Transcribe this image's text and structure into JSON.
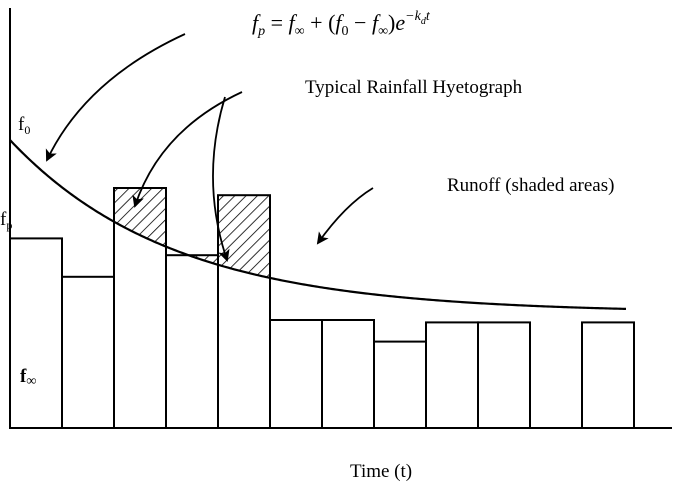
{
  "equation": {
    "lhs_f": "f",
    "lhs_sub": "p",
    "eq1": " = ",
    "f1": "f",
    "sub1": "∞",
    "plus": " + (",
    "f2": "f",
    "sub2": "0",
    "minus": " − ",
    "f3": "f",
    "sub3": "∞",
    "close": ")",
    "e": "e",
    "exp": "−k",
    "exp_sub": "d",
    "exp_t": "t"
  },
  "labels": {
    "hyetograph": "Typical Rainfall Hyetograph",
    "runoff": "Runoff (shaded areas)",
    "x_axis": "Time (t)",
    "f0_base": "f",
    "f0_sub": "0",
    "fp_base": "f",
    "fp_sub": "p",
    "finf_base": "f",
    "finf_sub": "∞"
  },
  "curve": {
    "f0": 120,
    "f_inf": 48,
    "kd": 0.32
  },
  "hyetograph_bars": [
    {
      "interval": 1,
      "intensity": 79
    },
    {
      "interval": 2,
      "intensity": 63
    },
    {
      "interval": 3,
      "intensity": 100
    },
    {
      "interval": 4,
      "intensity": 72
    },
    {
      "interval": 5,
      "intensity": 97
    },
    {
      "interval": 6,
      "intensity": 45
    },
    {
      "interval": 7,
      "intensity": 45
    },
    {
      "interval": 8,
      "intensity": 36
    },
    {
      "interval": 9,
      "intensity": 44
    },
    {
      "interval": 10,
      "intensity": 44
    },
    {
      "interval": 11,
      "intensity": 0
    },
    {
      "interval": 12,
      "intensity": 44
    }
  ]
}
